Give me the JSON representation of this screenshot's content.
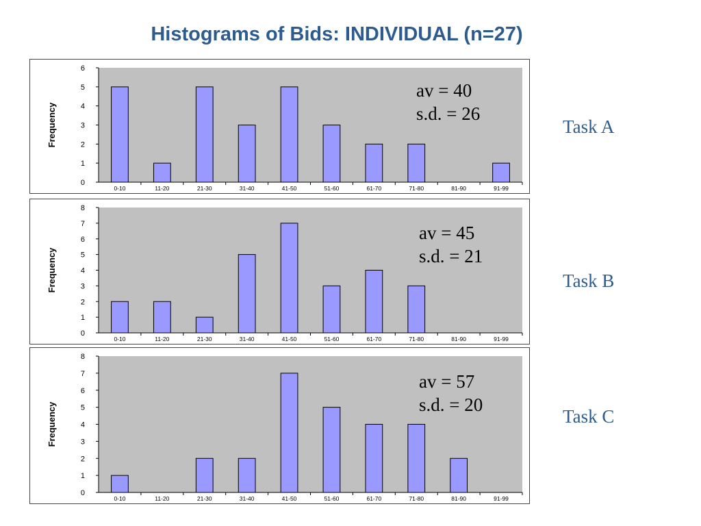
{
  "title": "Histograms of Bids: INDIVIDUAL (n=27)",
  "colors": {
    "title": "#2e5b8f",
    "plot_bg": "#c0c0c0",
    "bar_fill": "#9999ff",
    "bar_stroke": "#000000"
  },
  "chart_data": [
    {
      "type": "bar",
      "task_label": "Task A",
      "ylabel": "Frequency",
      "categories": [
        "0-10",
        "11-20",
        "21-30",
        "31-40",
        "41-50",
        "51-60",
        "61-70",
        "71-80",
        "81-90",
        "91-99"
      ],
      "values": [
        5,
        1,
        5,
        3,
        5,
        3,
        2,
        2,
        0,
        1
      ],
      "ylim": [
        0,
        6
      ],
      "yticks": [
        "0",
        "1",
        "2",
        "3",
        "4",
        "5",
        "6"
      ],
      "stats": {
        "av": "av = 40",
        "sd": "s.d. = 26"
      }
    },
    {
      "type": "bar",
      "task_label": "Task B",
      "ylabel": "Frequency",
      "categories": [
        "0-10",
        "11-20",
        "21-30",
        "31-40",
        "41-50",
        "51-60",
        "61-70",
        "71-80",
        "81-90",
        "91-99"
      ],
      "values": [
        2,
        2,
        1,
        5,
        7,
        3,
        4,
        3,
        0,
        0
      ],
      "ylim": [
        0,
        8
      ],
      "yticks": [
        "0",
        "1",
        "2",
        "3",
        "4",
        "5",
        "6",
        "7",
        "8"
      ],
      "stats": {
        "av": "av = 45",
        "sd": "s.d. = 21"
      }
    },
    {
      "type": "bar",
      "task_label": "Task C",
      "ylabel": "Frequency",
      "categories": [
        "0-10",
        "11-20",
        "21-30",
        "31-40",
        "41-50",
        "51-60",
        "61-70",
        "71-80",
        "81-90",
        "91-99"
      ],
      "values": [
        1,
        0,
        2,
        2,
        7,
        5,
        4,
        4,
        2,
        0
      ],
      "ylim": [
        0,
        8
      ],
      "yticks": [
        "0",
        "1",
        "2",
        "3",
        "4",
        "5",
        "6",
        "7",
        "8"
      ],
      "stats": {
        "av": "av = 57",
        "sd": "s.d. = 20"
      }
    }
  ]
}
